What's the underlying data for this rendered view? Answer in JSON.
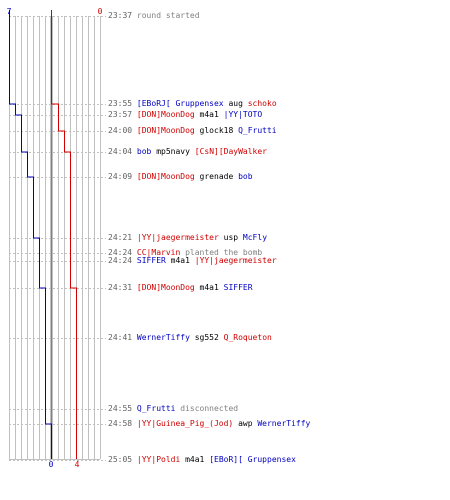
{
  "colors": {
    "blue_team": "#0000c0",
    "red_team": "#d00000",
    "grid": "#c0c0c0",
    "center_line": "#808080",
    "time": "#606060",
    "system": "#808080"
  },
  "scoreboard": {
    "blue_start": "7",
    "red_start": "0",
    "blue_end": "0",
    "red_end": "4"
  },
  "timeline": {
    "max_players": 8,
    "blue_counts": [
      7,
      6,
      5,
      5,
      4,
      3,
      2,
      2,
      1,
      1,
      0
    ],
    "red_counts": [
      0,
      1,
      1,
      2,
      3,
      3,
      3,
      3,
      4,
      4,
      4
    ]
  },
  "events": [
    {
      "time": "23:37",
      "parts": [
        {
          "t": "round started",
          "c": "sys"
        }
      ]
    },
    {
      "time": "23:55",
      "parts": [
        {
          "t": "[EBoRJ[ Gruppensex",
          "c": "t0"
        },
        {
          "t": "aug",
          "c": "tn"
        },
        {
          "t": "schoko",
          "c": "t1"
        }
      ]
    },
    {
      "time": "23:57",
      "parts": [
        {
          "t": "[DON]MoonDog",
          "c": "t1"
        },
        {
          "t": "m4a1",
          "c": "tn"
        },
        {
          "t": "|YY|TOTO",
          "c": "t0"
        }
      ]
    },
    {
      "time": "24:00",
      "parts": [
        {
          "t": "[DON]MoonDog",
          "c": "t1"
        },
        {
          "t": "glock18",
          "c": "tn"
        },
        {
          "t": "Q_Frutti",
          "c": "t0"
        }
      ]
    },
    {
      "time": "24:04",
      "parts": [
        {
          "t": "bob",
          "c": "t0"
        },
        {
          "t": "mp5navy",
          "c": "tn"
        },
        {
          "t": "[CsN][DayWalker",
          "c": "t1"
        }
      ]
    },
    {
      "time": "24:09",
      "parts": [
        {
          "t": "[DON]MoonDog",
          "c": "t1"
        },
        {
          "t": "grenade",
          "c": "tn"
        },
        {
          "t": "bob",
          "c": "t0"
        }
      ]
    },
    {
      "time": "24:21",
      "parts": [
        {
          "t": "|YY|jaegermeister",
          "c": "t1"
        },
        {
          "t": "usp",
          "c": "tn"
        },
        {
          "t": "McFly",
          "c": "t0"
        }
      ]
    },
    {
      "time": "24:24",
      "parts": [
        {
          "t": "CC|Marvin",
          "c": "t1"
        },
        {
          "t": "planted the bomb",
          "c": "sys"
        }
      ]
    },
    {
      "time": "24:24",
      "parts": [
        {
          "t": "SIFFER",
          "c": "t0"
        },
        {
          "t": "m4a1",
          "c": "tn"
        },
        {
          "t": "|YY|jaegermeister",
          "c": "t1"
        }
      ]
    },
    {
      "time": "24:31",
      "parts": [
        {
          "t": "[DON]MoonDog",
          "c": "t1"
        },
        {
          "t": "m4a1",
          "c": "tn"
        },
        {
          "t": "SIFFER",
          "c": "t0"
        }
      ]
    },
    {
      "time": "24:41",
      "parts": [
        {
          "t": "WernerTiffy",
          "c": "t0"
        },
        {
          "t": "sg552",
          "c": "tn"
        },
        {
          "t": "Q_Roqueton",
          "c": "t1"
        }
      ]
    },
    {
      "time": "24:55",
      "parts": [
        {
          "t": "Q_Frutti",
          "c": "t0"
        },
        {
          "t": "disconnected",
          "c": "sys"
        }
      ]
    },
    {
      "time": "24:58",
      "parts": [
        {
          "t": "|YY|Guinea_Pig_(Jod)",
          "c": "t1"
        },
        {
          "t": "awp",
          "c": "tn"
        },
        {
          "t": "WernerTiffy",
          "c": "t0"
        }
      ]
    },
    {
      "time": "25:05",
      "parts": [
        {
          "t": "|YY|Poldi",
          "c": "t1"
        },
        {
          "t": "m4a1",
          "c": "tn"
        },
        {
          "t": "[EBoR][ Gruppensex",
          "c": "t0"
        }
      ]
    }
  ]
}
